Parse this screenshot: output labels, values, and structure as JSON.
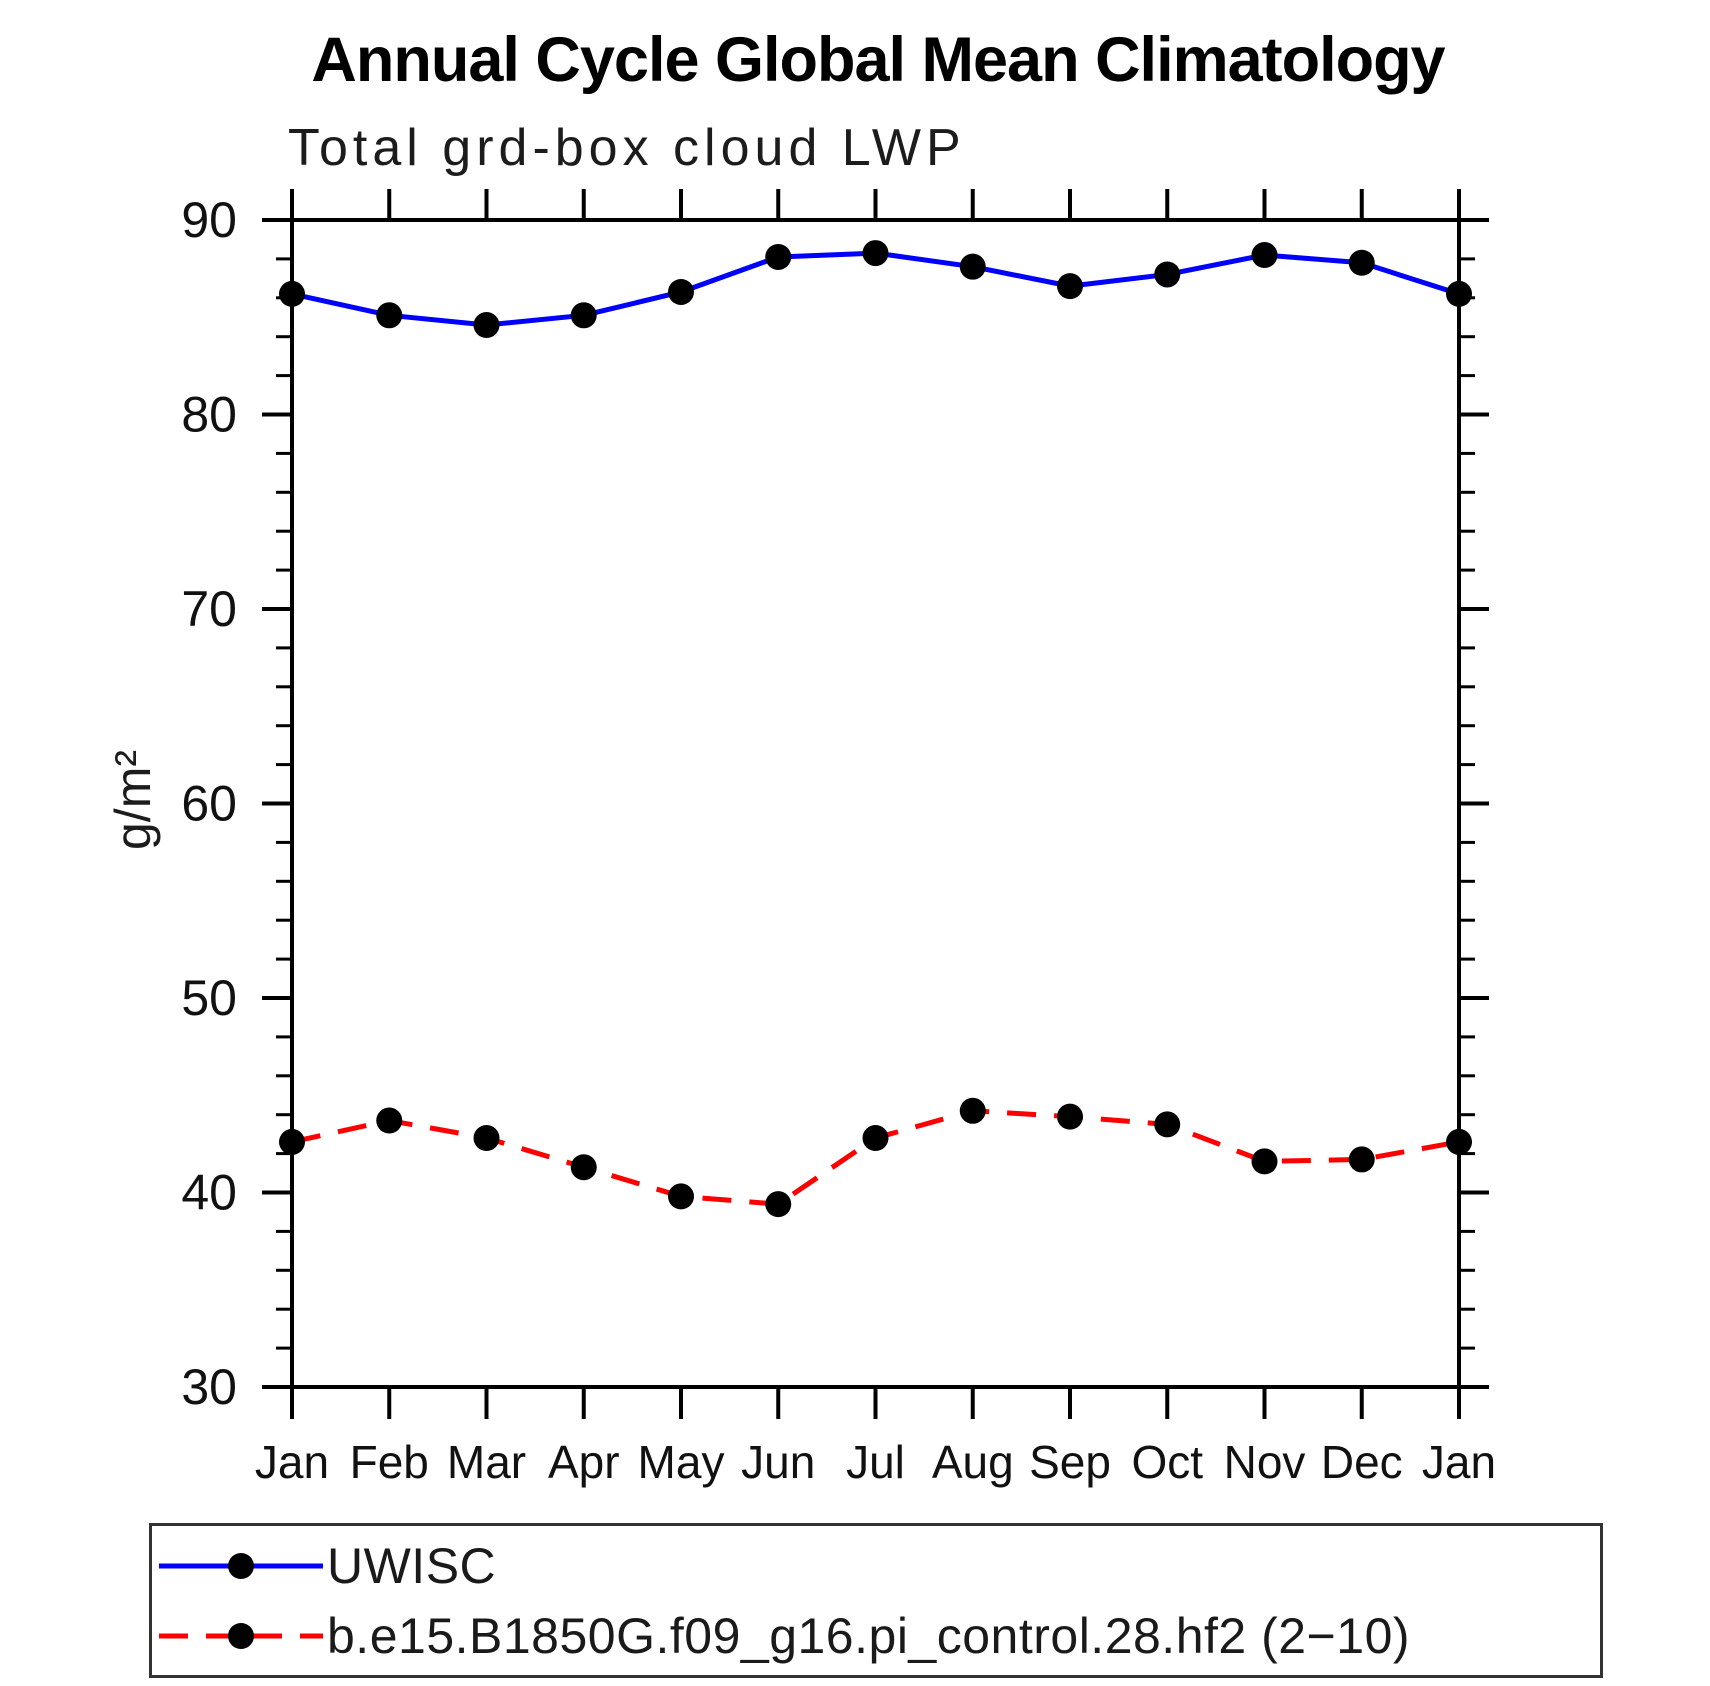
{
  "title": "Annual Cycle Global Mean Climatology",
  "chart_data": {
    "type": "line",
    "subtitle": "Total grd-box cloud LWP",
    "ylabel": "g/m²",
    "ylim": [
      30,
      90
    ],
    "yticks_major": [
      30,
      40,
      50,
      60,
      70,
      80,
      90
    ],
    "ytick_minor_step": 2,
    "grid": false,
    "legend_position": "bottom",
    "axis_color": "#000000",
    "marker": "filled-circle",
    "marker_color": "#000000",
    "categories": [
      "Jan",
      "Feb",
      "Mar",
      "Apr",
      "May",
      "Jun",
      "Jul",
      "Aug",
      "Sep",
      "Oct",
      "Nov",
      "Dec",
      "Jan"
    ],
    "series": [
      {
        "name": "UWISC",
        "color": "#0000ff",
        "line_style": "solid",
        "values": [
          86.2,
          85.1,
          84.6,
          85.1,
          86.3,
          88.1,
          88.3,
          87.6,
          86.6,
          87.2,
          88.2,
          87.8,
          86.2
        ]
      },
      {
        "name": "b.e15.B1850G.f09_g16.pi_control.28.hf2 (2−10)",
        "color": "#ff0000",
        "line_style": "dashed",
        "values": [
          42.6,
          43.7,
          42.8,
          41.3,
          39.8,
          39.4,
          42.8,
          44.2,
          43.9,
          43.5,
          41.6,
          41.7,
          42.6
        ]
      }
    ]
  }
}
